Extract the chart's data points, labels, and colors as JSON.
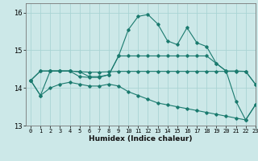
{
  "title": "",
  "xlabel": "Humidex (Indice chaleur)",
  "bg_color": "#cce8e8",
  "line_color": "#1a7a6e",
  "grid_color": "#aad4d4",
  "xlim": [
    -0.5,
    23
  ],
  "ylim": [
    13.0,
    16.25
  ],
  "yticks": [
    13,
    14,
    15,
    16
  ],
  "xticks": [
    0,
    1,
    2,
    3,
    4,
    5,
    6,
    7,
    8,
    9,
    10,
    11,
    12,
    13,
    14,
    15,
    16,
    17,
    18,
    19,
    20,
    21,
    22,
    23
  ],
  "series": [
    [
      14.2,
      13.8,
      14.45,
      14.45,
      14.45,
      14.3,
      14.28,
      14.28,
      14.35,
      14.85,
      15.55,
      15.9,
      15.95,
      15.7,
      15.25,
      15.15,
      15.6,
      15.2,
      15.1,
      14.65,
      14.45,
      13.65,
      13.15,
      13.55
    ],
    [
      14.2,
      14.45,
      14.45,
      14.45,
      14.45,
      14.43,
      14.42,
      14.42,
      14.43,
      14.44,
      14.44,
      14.44,
      14.44,
      14.44,
      14.44,
      14.44,
      14.44,
      14.44,
      14.44,
      14.44,
      14.44,
      14.44,
      14.44,
      14.1
    ],
    [
      14.2,
      14.45,
      14.45,
      14.45,
      14.45,
      14.43,
      14.3,
      14.3,
      14.35,
      14.85,
      14.85,
      14.85,
      14.85,
      14.85,
      14.85,
      14.85,
      14.85,
      14.85,
      14.85,
      14.65,
      14.45,
      14.45,
      14.44,
      14.1
    ],
    [
      14.2,
      13.8,
      14.0,
      14.1,
      14.15,
      14.1,
      14.05,
      14.05,
      14.1,
      14.05,
      13.9,
      13.8,
      13.7,
      13.6,
      13.55,
      13.5,
      13.45,
      13.4,
      13.35,
      13.3,
      13.25,
      13.2,
      13.15,
      13.55
    ]
  ]
}
